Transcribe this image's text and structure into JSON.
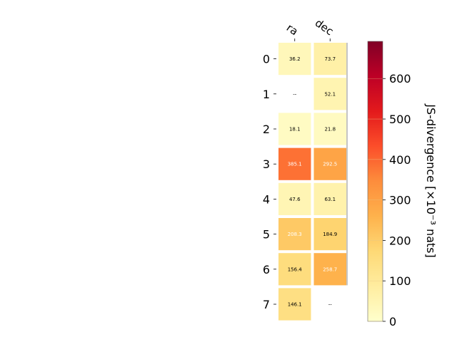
{
  "chart_data": {
    "type": "heatmap",
    "columns": [
      "ra",
      "dec"
    ],
    "rows": [
      "0",
      "1",
      "2",
      "3",
      "4",
      "5",
      "6",
      "7"
    ],
    "values": [
      [
        36.2,
        73.7
      ],
      [
        null,
        52.1
      ],
      [
        18.1,
        21.8
      ],
      [
        385.1,
        292.5
      ],
      [
        47.6,
        63.1
      ],
      [
        208.3,
        184.9
      ],
      [
        156.4,
        258.7
      ],
      [
        146.1,
        null
      ]
    ],
    "missing_label": "--",
    "colorbar": {
      "label": "JS-divergence [×10⁻³ nats]",
      "min": 0,
      "max": 692,
      "ticks": [
        0,
        100,
        200,
        300,
        400,
        500,
        600
      ],
      "colormap": "YlOrRd"
    },
    "colors": {
      "cmap_stops": [
        "#ffffcc",
        "#ffeda0",
        "#fed976",
        "#feb24c",
        "#fd8d3c",
        "#fc4e2a",
        "#e31a1c",
        "#bd0026",
        "#800026"
      ]
    }
  }
}
